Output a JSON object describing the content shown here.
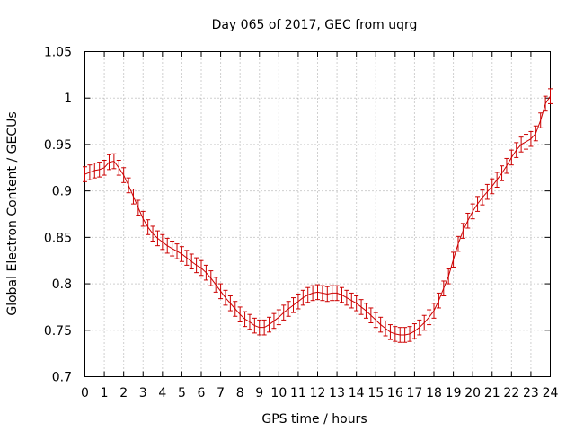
{
  "chart_data": {
    "type": "line",
    "title": "Day 065 of 2017, GEC from uqrg",
    "xlabel": "GPS time / hours",
    "ylabel": "Global Electron Content / GECUs",
    "xlim": [
      0,
      24
    ],
    "ylim": [
      0.7,
      1.05
    ],
    "xticks": [
      "0",
      "1",
      "2",
      "3",
      "4",
      "5",
      "6",
      "7",
      "8",
      "9",
      "10",
      "11",
      "12",
      "13",
      "14",
      "15",
      "16",
      "17",
      "18",
      "19",
      "20",
      "21",
      "22",
      "23",
      "24"
    ],
    "yticks": [
      "0.7",
      "0.75",
      "0.8",
      "0.85",
      "0.9",
      "0.95",
      "1",
      "1.05"
    ],
    "grid": true,
    "legend": "none",
    "series_color": "#cc0000",
    "error_half_width": 0.008,
    "series": [
      {
        "x": [
          0,
          0.25,
          0.5,
          0.75,
          1,
          1.25,
          1.5,
          1.75,
          2,
          2.25,
          2.5,
          2.75,
          3,
          3.25,
          3.5,
          3.75,
          4,
          4.25,
          4.5,
          4.75,
          5,
          5.25,
          5.5,
          5.75,
          6,
          6.25,
          6.5,
          6.75,
          7,
          7.25,
          7.5,
          7.75,
          8,
          8.25,
          8.5,
          8.75,
          9,
          9.25,
          9.5,
          9.75,
          10,
          10.25,
          10.5,
          10.75,
          11,
          11.25,
          11.5,
          11.75,
          12,
          12.25,
          12.5,
          12.75,
          13,
          13.25,
          13.5,
          13.75,
          14,
          14.25,
          14.5,
          14.75,
          15,
          15.25,
          15.5,
          15.75,
          16,
          16.25,
          16.5,
          16.75,
          17,
          17.25,
          17.5,
          17.75,
          18,
          18.25,
          18.5,
          18.75,
          19,
          19.25,
          19.5,
          19.75,
          20,
          20.25,
          20.5,
          20.75,
          21,
          21.25,
          21.5,
          21.75,
          22,
          22.25,
          22.5,
          22.75,
          23,
          23.25,
          23.5,
          23.75,
          24
        ],
        "values": [
          0.918,
          0.92,
          0.922,
          0.923,
          0.925,
          0.931,
          0.932,
          0.925,
          0.917,
          0.906,
          0.894,
          0.882,
          0.87,
          0.861,
          0.854,
          0.849,
          0.845,
          0.841,
          0.838,
          0.835,
          0.832,
          0.828,
          0.824,
          0.82,
          0.817,
          0.812,
          0.806,
          0.799,
          0.792,
          0.785,
          0.779,
          0.773,
          0.767,
          0.762,
          0.759,
          0.755,
          0.753,
          0.753,
          0.756,
          0.76,
          0.764,
          0.769,
          0.773,
          0.777,
          0.781,
          0.785,
          0.788,
          0.79,
          0.791,
          0.79,
          0.789,
          0.79,
          0.79,
          0.788,
          0.785,
          0.782,
          0.779,
          0.775,
          0.771,
          0.766,
          0.761,
          0.756,
          0.752,
          0.748,
          0.746,
          0.745,
          0.745,
          0.746,
          0.749,
          0.753,
          0.758,
          0.764,
          0.771,
          0.782,
          0.795,
          0.808,
          0.826,
          0.843,
          0.857,
          0.868,
          0.878,
          0.886,
          0.893,
          0.899,
          0.905,
          0.912,
          0.919,
          0.927,
          0.936,
          0.944,
          0.95,
          0.953,
          0.956,
          0.962,
          0.976,
          0.994,
          1.002
        ]
      }
    ]
  }
}
